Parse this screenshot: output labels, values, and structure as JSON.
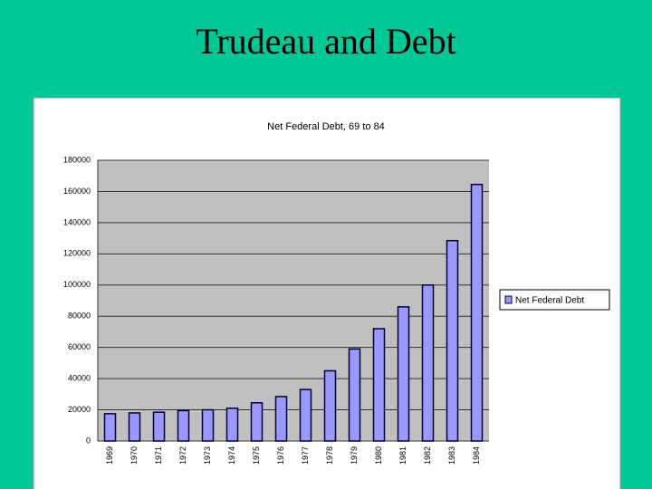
{
  "title": "Trudeau and Debt",
  "chart_data": {
    "type": "bar",
    "title": "Net Federal Debt, 69 to 84",
    "categories": [
      "1969",
      "1970",
      "1971",
      "1972",
      "1973",
      "1974",
      "1975",
      "1976",
      "1977",
      "1978",
      "1979",
      "1980",
      "1981",
      "1982",
      "1983",
      "1984"
    ],
    "series": [
      {
        "name": "Net Federal Debt",
        "color": "#9999ff",
        "values": [
          17500,
          18000,
          18500,
          19500,
          20000,
          21000,
          24500,
          28500,
          33000,
          45000,
          59000,
          72000,
          86000,
          100000,
          128500,
          164500
        ]
      }
    ],
    "ylim": [
      0,
      180000
    ],
    "yticks": [
      0,
      20000,
      40000,
      60000,
      80000,
      100000,
      120000,
      140000,
      160000,
      180000
    ],
    "grid": true,
    "legend": "right"
  }
}
